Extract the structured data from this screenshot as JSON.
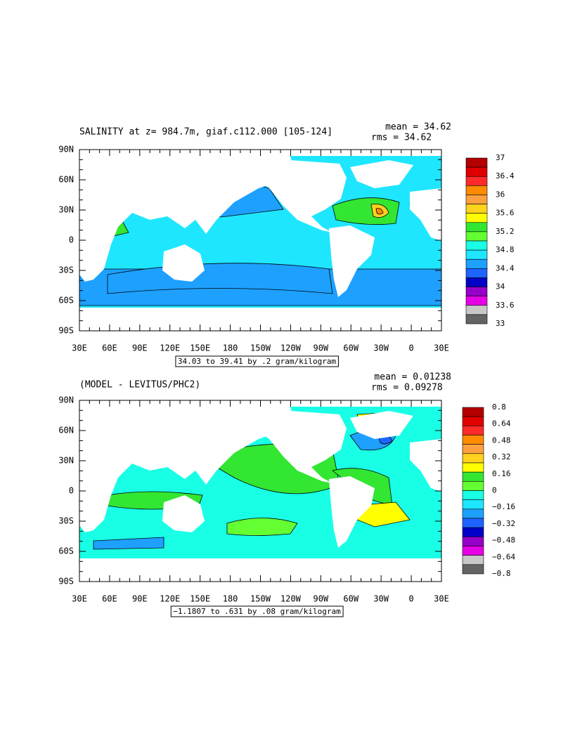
{
  "panels": [
    {
      "title": "SALINITY at z= 984.7m, giaf.c112.000 [105-124]",
      "mean": "mean = 34.62",
      "rms": "rms = 34.62",
      "range": "34.03 to 39.41 by .2 gram/kilogram",
      "colorbar_labels": [
        "37",
        "36.4",
        "36",
        "35.6",
        "35.2",
        "34.8",
        "34.4",
        "34",
        "33.6",
        "33"
      ]
    },
    {
      "title": "(MODEL - LEVITUS/PHC2)",
      "mean": "mean = 0.01238",
      "rms": "rms = 0.09278",
      "range": "−1.1807 to .631 by .08 gram/kilogram",
      "colorbar_labels": [
        "0.8",
        "0.64",
        "0.48",
        "0.32",
        "0.16",
        "0",
        "−0.16",
        "−0.32",
        "−0.48",
        "−0.64",
        "−0.8"
      ]
    }
  ],
  "lat_labels": [
    "90N",
    "60N",
    "30N",
    "0",
    "30S",
    "60S",
    "90S"
  ],
  "lon_labels": [
    "30E",
    "60E",
    "90E",
    "120E",
    "150E",
    "180",
    "150W",
    "120W",
    "90W",
    "60W",
    "30W",
    "0",
    "30E"
  ],
  "colorbar_colors": [
    "#b40000",
    "#e00000",
    "#ff2a2a",
    "#ff8c00",
    "#ffa040",
    "#ffd21e",
    "#ffff00",
    "#32e632",
    "#64ff32",
    "#19ffe6",
    "#1ee6ff",
    "#1ea0ff",
    "#1e64ff",
    "#0000c8",
    "#9600c8",
    "#e600e6",
    "#c8c8c8",
    "#646464"
  ]
}
